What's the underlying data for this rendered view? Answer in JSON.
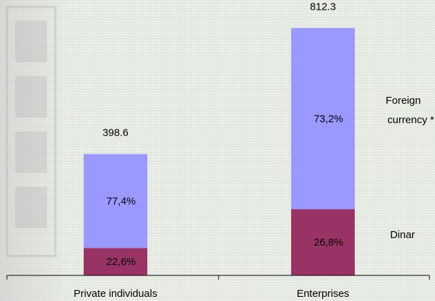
{
  "chart_data": {
    "type": "bar",
    "stacked": true,
    "categories": [
      "Private individuals",
      "Enterprises"
    ],
    "totals": [
      398.6,
      812.3
    ],
    "total_labels": [
      "398.6",
      "812.3"
    ],
    "series": [
      {
        "name": "Dinar",
        "color": "#993366",
        "values": [
          90.1,
          217.7
        ],
        "labels": [
          "22,6%",
          "26,8%"
        ]
      },
      {
        "name": "Foreign currency *",
        "color": "#9999ff",
        "values": [
          308.5,
          594.6
        ],
        "labels": [
          "77,4%",
          "73,2%"
        ]
      }
    ],
    "ylim": [
      0,
      1000
    ],
    "grid": false,
    "legend_placement": "right, inline labels",
    "legend": {
      "foreign_line1": "Foreign",
      "foreign_line2": "currency *",
      "dinar": "Dinar"
    }
  },
  "watermark": {
    "icon": "nbs-logo-watermark"
  }
}
